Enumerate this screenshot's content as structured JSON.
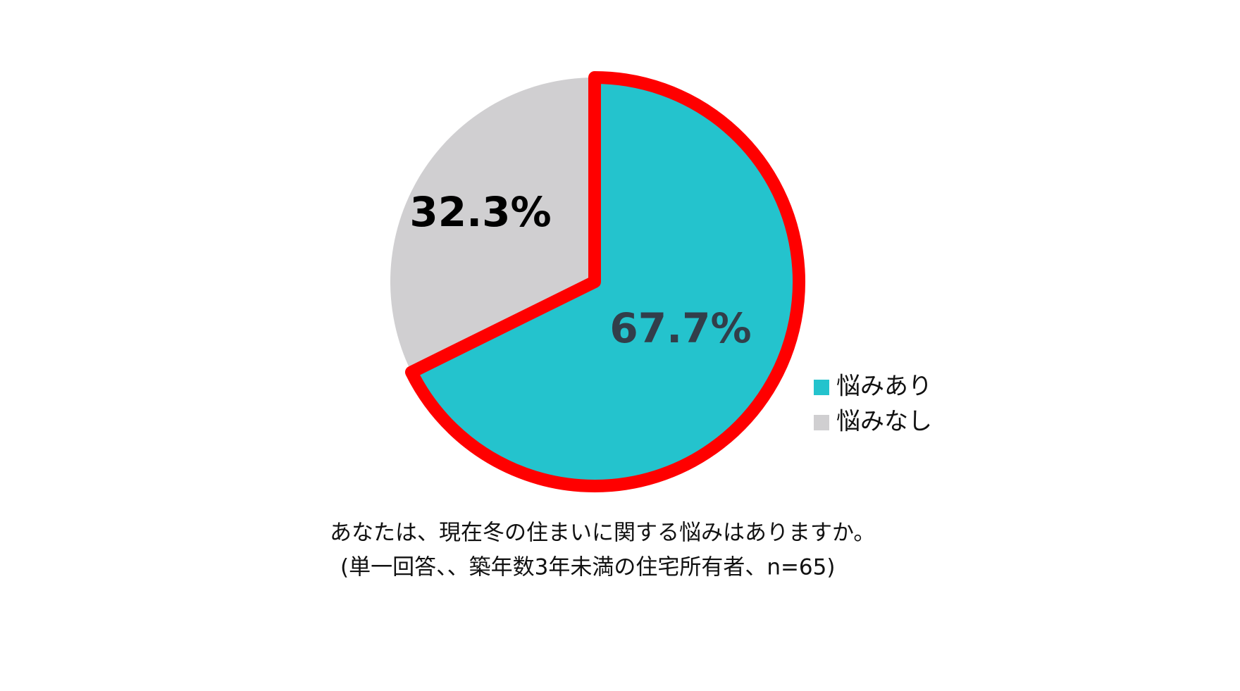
{
  "chart_data": {
    "type": "pie",
    "categories": [
      "悩みあり",
      "悩みなし"
    ],
    "values": [
      67.7,
      32.3
    ],
    "value_labels": [
      "67.7%",
      "32.3%"
    ],
    "colors": [
      "#24c3cd",
      "#d0cfd1"
    ],
    "highlight_outline": "#ff0000",
    "notes": [
      "あなたは、現在冬の住まいに関する悩みはありますか。",
      "(単一回答、、築年数3年未満の住宅所有者、n=65)"
    ]
  }
}
